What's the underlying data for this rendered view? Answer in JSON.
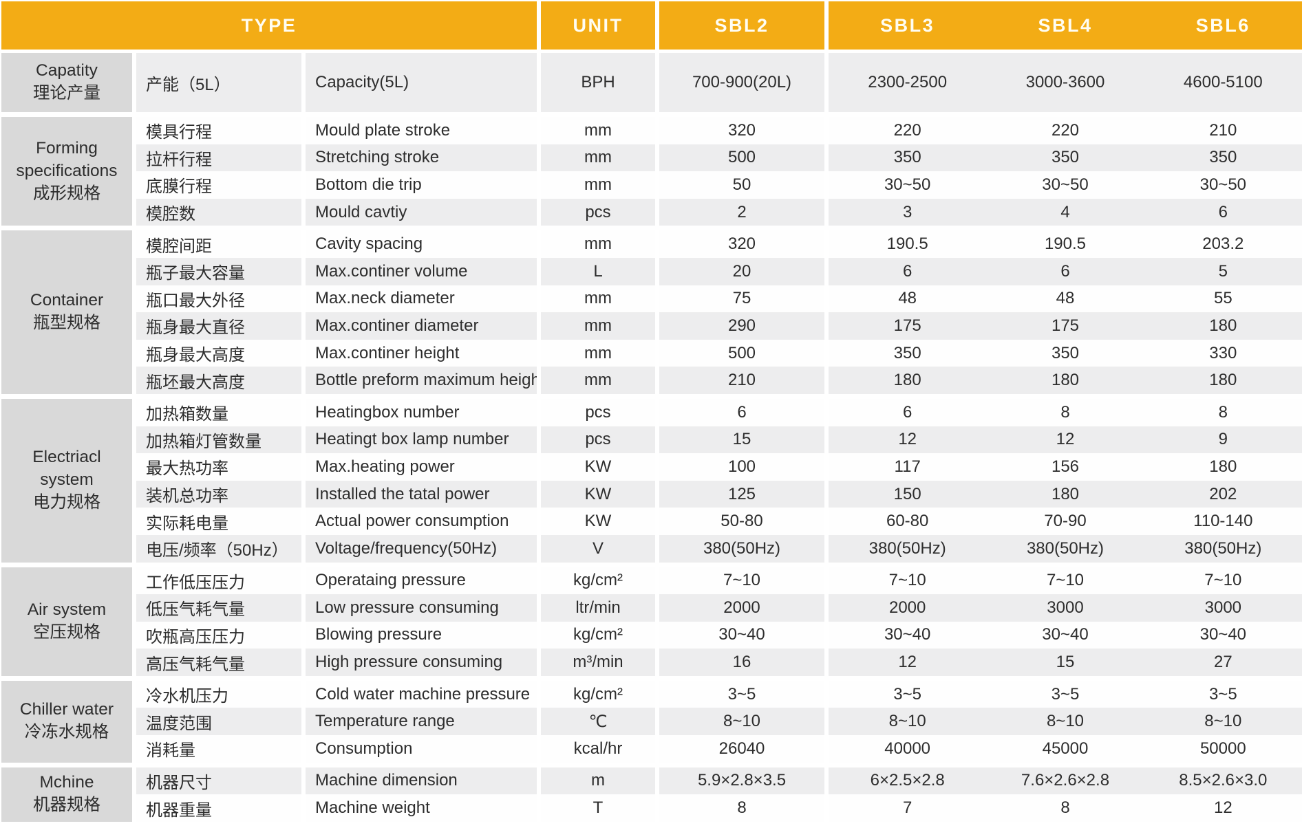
{
  "header": {
    "type_label": "TYPE",
    "unit_label": "UNIT",
    "models": [
      "SBL2",
      "SBL3",
      "SBL4",
      "SBL6"
    ]
  },
  "colors": {
    "header_bg": "#F3AC15",
    "group_block_bg": "#D9D9D9",
    "stripe_bg": "#EDEDEE",
    "text": "#2D2D2D"
  },
  "sections": [
    {
      "group_lines": [
        "Capatity",
        "理论产量"
      ],
      "rows": [
        {
          "cn": "产能（5L）",
          "en": "Capacity(5L)",
          "unit": "BPH",
          "values": [
            "700-900(20L)",
            "2300-2500",
            "3000-3600",
            "4600-5100"
          ]
        }
      ]
    },
    {
      "group_lines": [
        "Forming",
        "specifications",
        "成形规格"
      ],
      "rows": [
        {
          "cn": "模具行程",
          "en": "Mould plate stroke",
          "unit": "mm",
          "values": [
            "320",
            "220",
            "220",
            "210"
          ]
        },
        {
          "cn": "拉杆行程",
          "en": "Stretching stroke",
          "unit": "mm",
          "values": [
            "500",
            "350",
            "350",
            "350"
          ]
        },
        {
          "cn": "底膜行程",
          "en": "Bottom die trip",
          "unit": "mm",
          "values": [
            "50",
            "30~50",
            "30~50",
            "30~50"
          ]
        },
        {
          "cn": "模腔数",
          "en": "Mould cavtiy",
          "unit": "pcs",
          "values": [
            "2",
            "3",
            "4",
            "6"
          ]
        }
      ]
    },
    {
      "group_lines": [
        "Container",
        "瓶型规格"
      ],
      "rows": [
        {
          "cn": "模腔间距",
          "en": "Cavity spacing",
          "unit": "mm",
          "values": [
            "320",
            "190.5",
            "190.5",
            "203.2"
          ]
        },
        {
          "cn": "瓶子最大容量",
          "en": "Max.continer volume",
          "unit": "L",
          "values": [
            "20",
            "6",
            "6",
            "5"
          ]
        },
        {
          "cn": "瓶口最大外径",
          "en": "Max.neck diameter",
          "unit": "mm",
          "values": [
            "75",
            "48",
            "48",
            "55"
          ]
        },
        {
          "cn": "瓶身最大直径",
          "en": "Max.continer diameter",
          "unit": "mm",
          "values": [
            "290",
            "175",
            "175",
            "180"
          ]
        },
        {
          "cn": "瓶身最大高度",
          "en": "Max.continer height",
          "unit": "mm",
          "values": [
            "500",
            "350",
            "350",
            "330"
          ]
        },
        {
          "cn": "瓶坯最大高度",
          "en": "Bottle preform maximum height",
          "unit": "mm",
          "values": [
            "210",
            "180",
            "180",
            "180"
          ]
        }
      ]
    },
    {
      "group_lines": [
        "Electriacl",
        "system",
        "电力规格"
      ],
      "rows": [
        {
          "cn": "加热箱数量",
          "en": "Heatingbox number",
          "unit": "pcs",
          "values": [
            "6",
            "6",
            "8",
            "8"
          ]
        },
        {
          "cn": "加热箱灯管数量",
          "en": "Heatingt box lamp number",
          "unit": "pcs",
          "values": [
            "15",
            "12",
            "12",
            "9"
          ]
        },
        {
          "cn": "最大热功率",
          "en": "Max.heating power",
          "unit": "KW",
          "values": [
            "100",
            "117",
            "156",
            "180"
          ]
        },
        {
          "cn": "装机总功率",
          "en": "Installed the tatal power",
          "unit": "KW",
          "values": [
            "125",
            "150",
            "180",
            "202"
          ]
        },
        {
          "cn": "实际耗电量",
          "en": "Actual power consumption",
          "unit": "KW",
          "values": [
            "50-80",
            "60-80",
            "70-90",
            "110-140"
          ]
        },
        {
          "cn": "电压/频率（50Hz）",
          "en": "Voltage/frequency(50Hz)",
          "unit": "V",
          "values": [
            "380(50Hz)",
            "380(50Hz)",
            "380(50Hz)",
            "380(50Hz)"
          ]
        }
      ]
    },
    {
      "group_lines": [
        "Air system",
        "空压规格"
      ],
      "rows": [
        {
          "cn": "工作低压压力",
          "en": "Operataing pressure",
          "unit": "kg/cm²",
          "values": [
            "7~10",
            "7~10",
            "7~10",
            "7~10"
          ]
        },
        {
          "cn": "低压气耗气量",
          "en": "Low pressure consuming",
          "unit": "ltr/min",
          "values": [
            "2000",
            "2000",
            "3000",
            "3000"
          ]
        },
        {
          "cn": "吹瓶高压压力",
          "en": "Blowing pressure",
          "unit": "kg/cm²",
          "values": [
            "30~40",
            "30~40",
            "30~40",
            "30~40"
          ]
        },
        {
          "cn": "高压气耗气量",
          "en": "High pressure consuming",
          "unit": "m³/min",
          "values": [
            "16",
            "12",
            "15",
            "27"
          ]
        }
      ]
    },
    {
      "group_lines": [
        "Chiller water",
        "冷冻水规格"
      ],
      "rows": [
        {
          "cn": "冷水机压力",
          "en": "Cold water machine pressure",
          "unit": "kg/cm²",
          "values": [
            "3~5",
            "3~5",
            "3~5",
            "3~5"
          ]
        },
        {
          "cn": "温度范围",
          "en": "Temperature range",
          "unit": "℃",
          "values": [
            "8~10",
            "8~10",
            "8~10",
            "8~10"
          ]
        },
        {
          "cn": "消耗量",
          "en": "Consumption",
          "unit": "kcal/hr",
          "values": [
            "26040",
            "40000",
            "45000",
            "50000"
          ]
        }
      ]
    },
    {
      "group_lines": [
        "Mchine",
        "机器规格"
      ],
      "rows": [
        {
          "cn": "机器尺寸",
          "en": "Machine dimension",
          "unit": "m",
          "values": [
            "5.9×2.8×3.5",
            "6×2.5×2.8",
            "7.6×2.6×2.8",
            "8.5×2.6×3.0"
          ]
        },
        {
          "cn": "机器重量",
          "en": "Machine weight",
          "unit": "T",
          "values": [
            "8",
            "7",
            "8",
            "12"
          ]
        }
      ]
    }
  ]
}
